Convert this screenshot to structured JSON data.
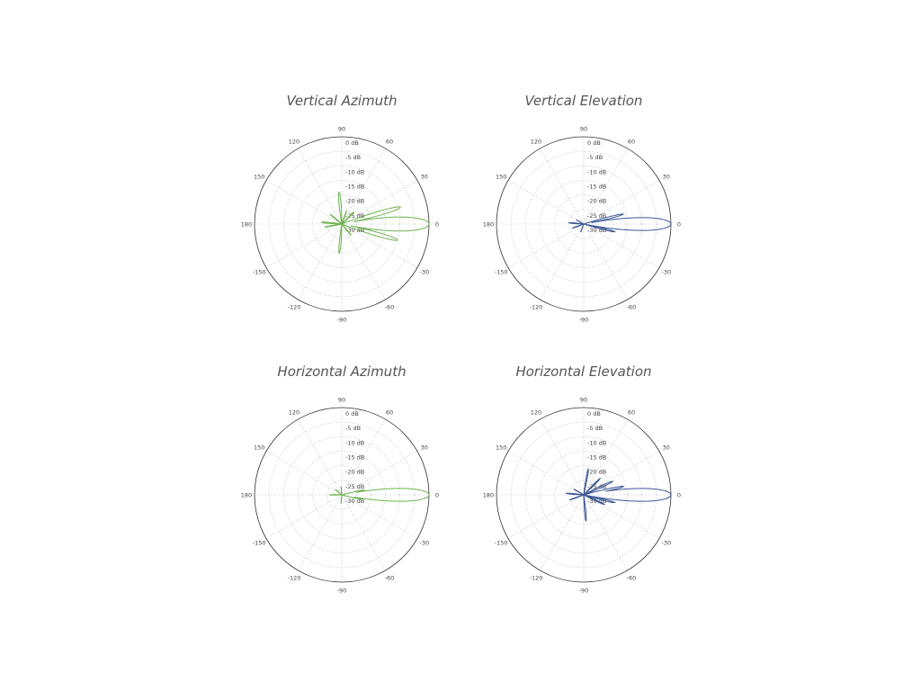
{
  "chart_data": [
    {
      "type": "polar",
      "title": "Vertical Azimuth",
      "color": "#6db24f",
      "angle_ticks": [
        "0",
        "30",
        "60",
        "90",
        "120",
        "150",
        "180",
        "-150",
        "-120",
        "-90",
        "-60",
        "-30"
      ],
      "r_ticks": [
        "0 dB",
        "-5 dB",
        "-10 dB",
        "-15 dB",
        "-20 dB",
        "-25 dB",
        "-30 dB"
      ],
      "rlim": [
        -30,
        0
      ],
      "lobes": [
        {
          "angle": 0,
          "peak": 0,
          "width": 12
        },
        {
          "angle": 16,
          "peak": -9,
          "width": 6
        },
        {
          "angle": -16,
          "peak": -10,
          "width": 6
        },
        {
          "angle": 95,
          "peak": -19,
          "width": 8
        },
        {
          "angle": -95,
          "peak": -20,
          "width": 8
        },
        {
          "angle": 175,
          "peak": -23,
          "width": 8
        },
        {
          "angle": -170,
          "peak": -24,
          "width": 6
        },
        {
          "angle": 140,
          "peak": -25,
          "width": 8
        },
        {
          "angle": 45,
          "peak": -24,
          "width": 6
        },
        {
          "angle": -50,
          "peak": -25,
          "width": 6
        },
        {
          "angle": 70,
          "peak": -25,
          "width": 5
        }
      ]
    },
    {
      "type": "polar",
      "title": "Vertical Elevation",
      "color": "#3b5595",
      "angle_ticks": [
        "0",
        "30",
        "60",
        "90",
        "120",
        "150",
        "180",
        "-150",
        "-120",
        "-90",
        "-60",
        "-30"
      ],
      "r_ticks": [
        "0 dB",
        "-5 dB",
        "-10 dB",
        "-15 dB",
        "-20 dB",
        "-25 dB",
        "-30 dB"
      ],
      "rlim": [
        -30,
        0
      ],
      "lobes": [
        {
          "angle": 0,
          "peak": 0,
          "width": 11
        },
        {
          "angle": 14,
          "peak": -16,
          "width": 5
        },
        {
          "angle": -14,
          "peak": -19,
          "width": 5
        },
        {
          "angle": 175,
          "peak": -25,
          "width": 8
        },
        {
          "angle": -160,
          "peak": -26,
          "width": 8
        },
        {
          "angle": 150,
          "peak": -27,
          "width": 6
        },
        {
          "angle": -110,
          "peak": -27,
          "width": 6
        }
      ]
    },
    {
      "type": "polar",
      "title": "Horizontal Azimuth",
      "color": "#6db24f",
      "angle_ticks": [
        "0",
        "30",
        "60",
        "90",
        "120",
        "150",
        "180",
        "-150",
        "-120",
        "-90",
        "-60",
        "-30"
      ],
      "r_ticks": [
        "0 dB",
        "-5 dB",
        "-10 dB",
        "-15 dB",
        "-20 dB",
        "-25 dB",
        "-30 dB"
      ],
      "rlim": [
        -30,
        0
      ],
      "lobes": [
        {
          "angle": 0,
          "peak": 0,
          "width": 11
        },
        {
          "angle": 12,
          "peak": -22,
          "width": 5
        },
        {
          "angle": -12,
          "peak": -23,
          "width": 5
        },
        {
          "angle": 180,
          "peak": -26,
          "width": 8
        },
        {
          "angle": 95,
          "peak": -27,
          "width": 6
        },
        {
          "angle": -95,
          "peak": -27,
          "width": 6
        },
        {
          "angle": 140,
          "peak": -27,
          "width": 6
        }
      ]
    },
    {
      "type": "polar",
      "title": "Horizontal Elevation",
      "color": "#3b5595",
      "angle_ticks": [
        "0",
        "30",
        "60",
        "90",
        "120",
        "150",
        "180",
        "-150",
        "-120",
        "-90",
        "-60",
        "-30"
      ],
      "r_ticks": [
        "0 dB",
        "-5 dB",
        "-10 dB",
        "-15 dB",
        "-20 dB",
        "-25 dB",
        "-30 dB"
      ],
      "rlim": [
        -30,
        0
      ],
      "lobes": [
        {
          "angle": 0,
          "peak": 0,
          "width": 11
        },
        {
          "angle": 12,
          "peak": -16,
          "width": 5
        },
        {
          "angle": 25,
          "peak": -19,
          "width": 6
        },
        {
          "angle": -14,
          "peak": -19,
          "width": 5
        },
        {
          "angle": -25,
          "peak": -22,
          "width": 5
        },
        {
          "angle": 45,
          "peak": -22,
          "width": 6
        },
        {
          "angle": 80,
          "peak": -21,
          "width": 6
        },
        {
          "angle": -85,
          "peak": -21,
          "width": 7
        },
        {
          "angle": 175,
          "peak": -24,
          "width": 8
        },
        {
          "angle": -160,
          "peak": -25,
          "width": 7
        },
        {
          "angle": 150,
          "peak": -26,
          "width": 6
        }
      ]
    }
  ]
}
